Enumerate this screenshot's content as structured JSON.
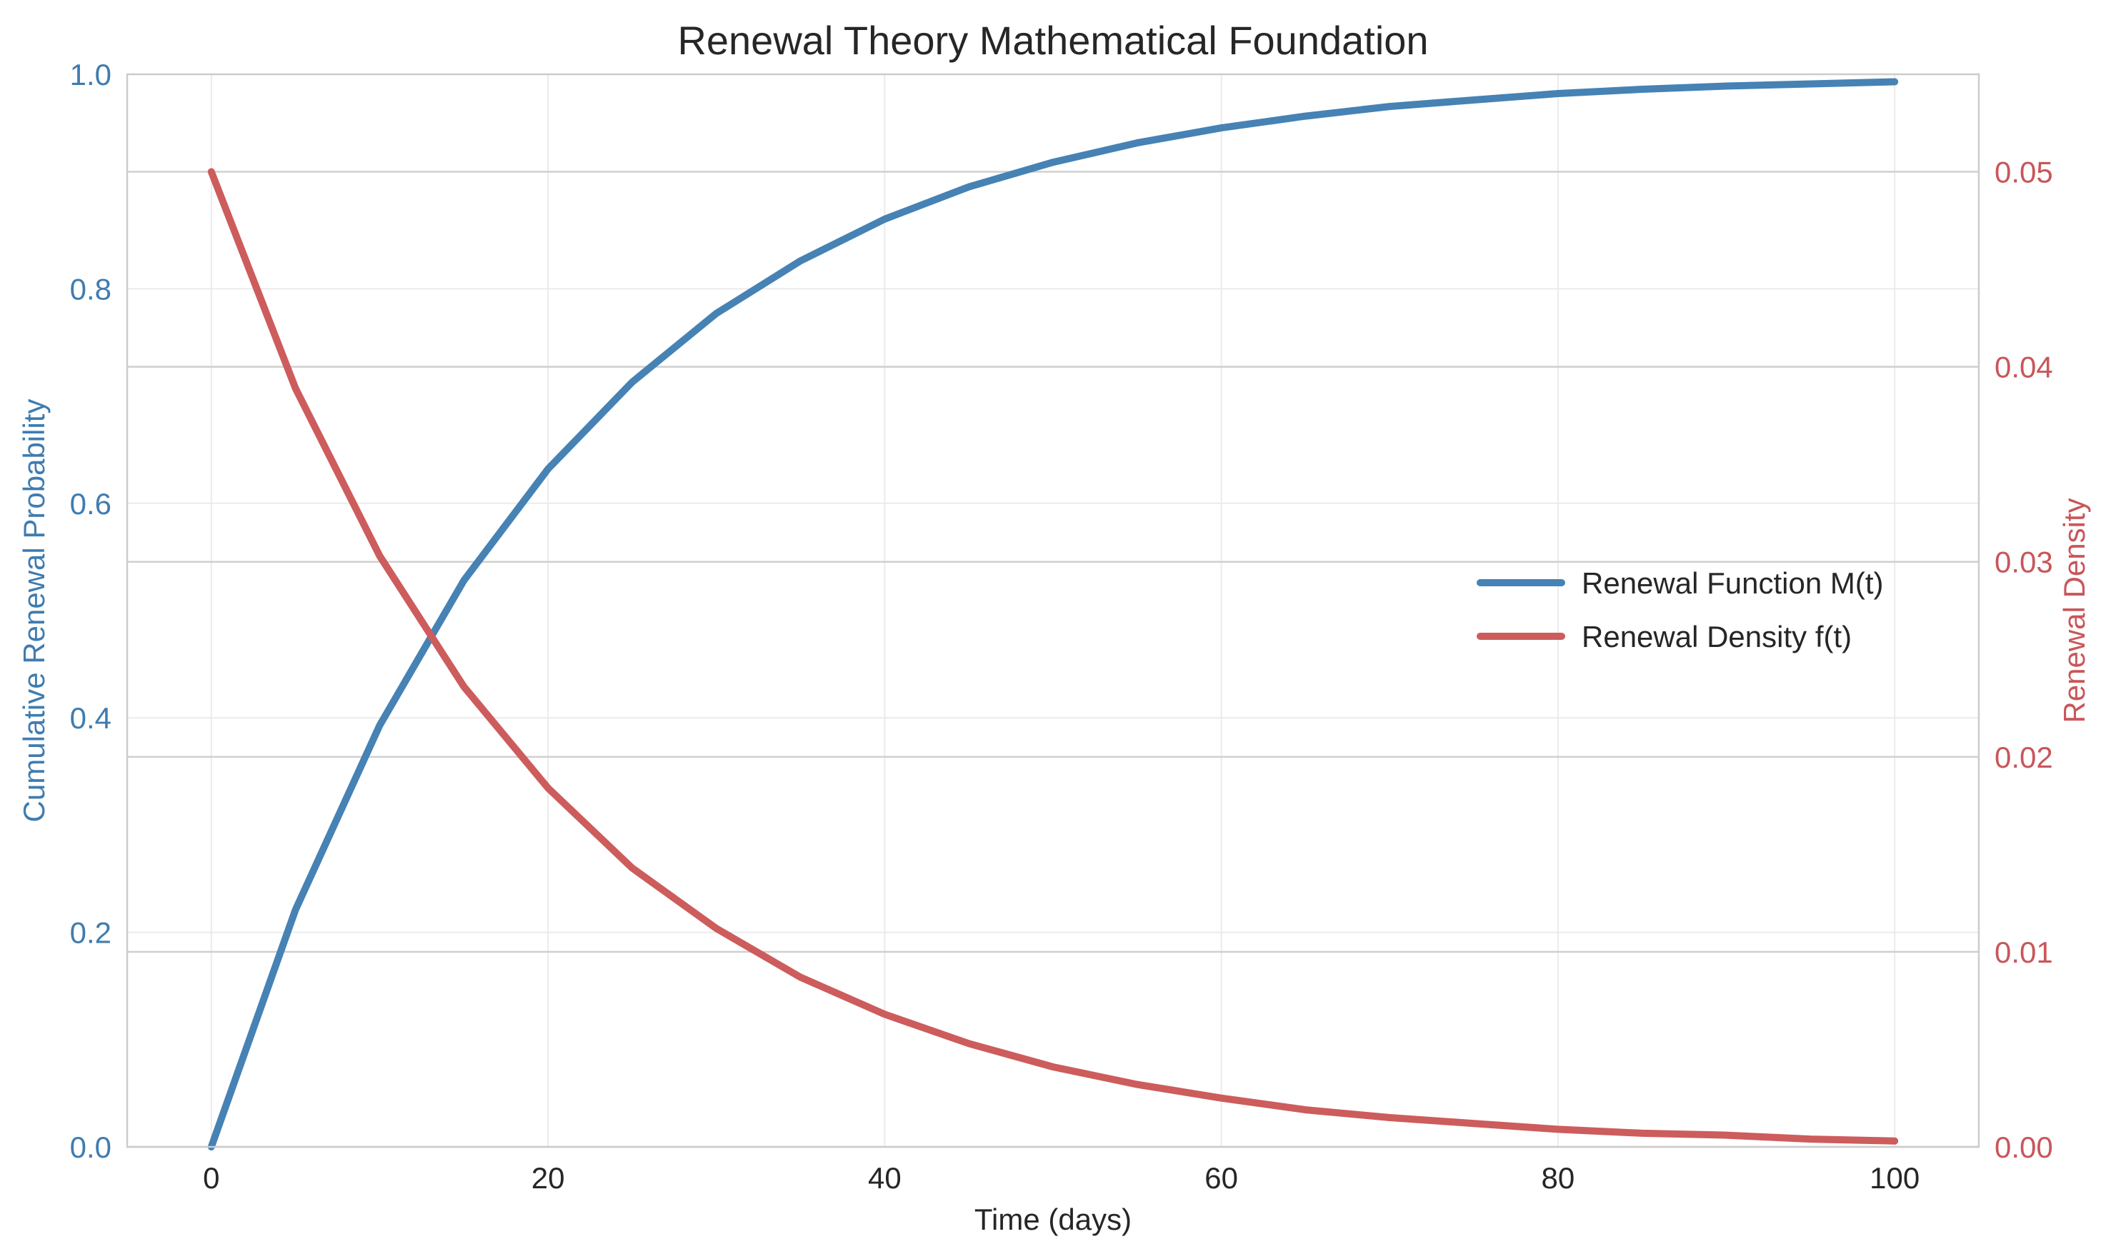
{
  "chart_data": {
    "type": "line",
    "title": "Renewal Theory Mathematical Foundation",
    "xlabel": "Time (days)",
    "ylabel_left": "Cumulative Renewal Probability",
    "ylabel_right": "Renewal Density",
    "xlim": [
      -5,
      105
    ],
    "ylim_left": [
      0,
      1.0
    ],
    "ylim_right": [
      0,
      0.055
    ],
    "x_ticks": [
      0,
      20,
      40,
      60,
      80,
      100
    ],
    "x_tick_labels": [
      "0",
      "20",
      "40",
      "60",
      "80",
      "100"
    ],
    "y_left_ticks": [
      0,
      0.2,
      0.4,
      0.6,
      0.8,
      1.0
    ],
    "y_left_tick_labels": [
      "0.0",
      "0.2",
      "0.4",
      "0.6",
      "0.8",
      "1.0"
    ],
    "y_right_ticks": [
      0,
      0.01,
      0.02,
      0.03,
      0.04,
      0.05
    ],
    "y_right_tick_labels": [
      "0.00",
      "0.01",
      "0.02",
      "0.03",
      "0.04",
      "0.05"
    ],
    "grid": true,
    "legend_position": "center-right",
    "x": [
      0,
      5,
      10,
      15,
      20,
      25,
      30,
      35,
      40,
      45,
      50,
      55,
      60,
      65,
      70,
      75,
      80,
      85,
      90,
      95,
      100
    ],
    "series": [
      {
        "name": "Renewal Function M(t)",
        "axis": "left",
        "color": "#4682b4",
        "values": [
          0.0,
          0.221,
          0.393,
          0.528,
          0.632,
          0.713,
          0.777,
          0.826,
          0.865,
          0.895,
          0.918,
          0.936,
          0.95,
          0.961,
          0.97,
          0.976,
          0.982,
          0.986,
          0.989,
          0.991,
          0.993
        ]
      },
      {
        "name": "Renewal Density f(t)",
        "axis": "right",
        "color": "#cd5c5c",
        "values": [
          0.05,
          0.0389,
          0.0303,
          0.0236,
          0.0184,
          0.0143,
          0.0112,
          0.0087,
          0.0068,
          0.0053,
          0.0041,
          0.0032,
          0.0025,
          0.0019,
          0.0015,
          0.0012,
          0.0009,
          0.0007,
          0.0006,
          0.0004,
          0.0003
        ]
      }
    ]
  },
  "colors": {
    "left_axis": "#3f7cb0",
    "right_axis": "#c9565a",
    "grid": "#ebebeb",
    "grid_right": "#cfcfcf",
    "spine": "#cccccc"
  }
}
